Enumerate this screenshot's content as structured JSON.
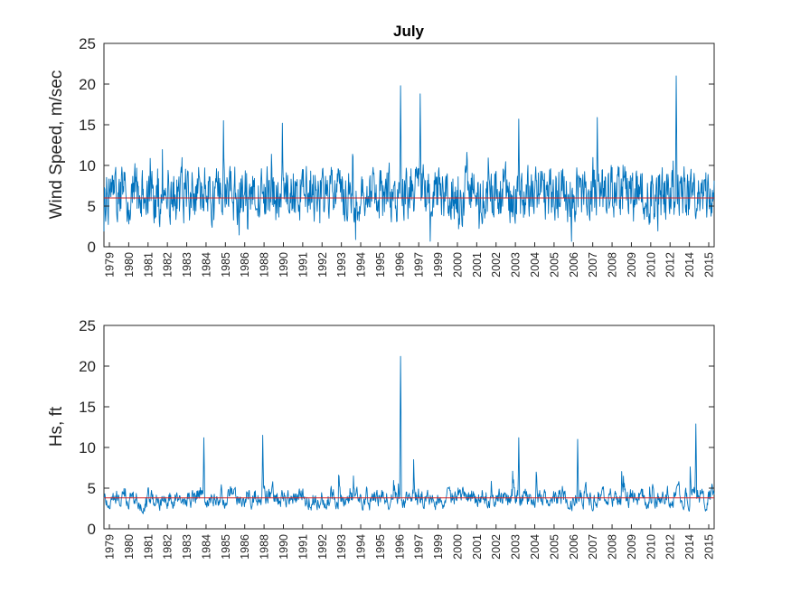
{
  "chart_data": [
    {
      "type": "line",
      "title": "July",
      "xlabel": "",
      "ylabel": "Wind Speed, m/sec",
      "ylim": [
        0,
        25
      ],
      "yticks": [
        0,
        5,
        10,
        15,
        20,
        25
      ],
      "xtick_labels": [
        "1979",
        "1980",
        "1981",
        "1982",
        "1983",
        "1984",
        "1985",
        "1986",
        "1988",
        "1990",
        "1991",
        "1992",
        "1993",
        "1994",
        "1995",
        "1996",
        "1997",
        "1999",
        "2000",
        "2001",
        "2002",
        "2003",
        "2004",
        "2005",
        "2006",
        "2007",
        "2008",
        "2009",
        "2010",
        "2012",
        "2014",
        "2015"
      ],
      "grid": false,
      "series_color": "#0072BD",
      "mean_value": 6.0,
      "mean_color": "#D62728",
      "approx_series_note_values": {
        "typical_range": [
          2,
          11
        ],
        "peaks": [
          {
            "year": "1985",
            "value": 15.5
          },
          {
            "year": "1990",
            "value": 15.2
          },
          {
            "year": "1996",
            "value": 19.8
          },
          {
            "year": "1997",
            "value": 18.8
          },
          {
            "year": "2003",
            "value": 15.7
          },
          {
            "year": "2007",
            "value": 15.9
          },
          {
            "year": "2012",
            "value": 21.0
          }
        ]
      }
    },
    {
      "type": "line",
      "title": "",
      "xlabel": "",
      "ylabel": "Hs, ft",
      "ylim": [
        0,
        25
      ],
      "yticks": [
        0,
        5,
        10,
        15,
        20,
        25
      ],
      "xtick_labels": [
        "1979",
        "1980",
        "1981",
        "1982",
        "1983",
        "1984",
        "1985",
        "1986",
        "1988",
        "1990",
        "1991",
        "1992",
        "1993",
        "1994",
        "1995",
        "1996",
        "1997",
        "1999",
        "2000",
        "2001",
        "2002",
        "2003",
        "2004",
        "2005",
        "2006",
        "2007",
        "2008",
        "2009",
        "2010",
        "2012",
        "2014",
        "2015"
      ],
      "grid": false,
      "series_color": "#0072BD",
      "mean_value": 3.8,
      "mean_color": "#D62728",
      "approx_series_note_values": {
        "typical_range": [
          1.5,
          7
        ],
        "peaks": [
          {
            "year": "1984",
            "value": 11.2
          },
          {
            "year": "1988",
            "value": 11.5
          },
          {
            "year": "1996",
            "value": 21.2
          },
          {
            "year": "2003",
            "value": 11.2
          },
          {
            "year": "2006",
            "value": 11.0
          },
          {
            "year": "2014",
            "value": 12.9
          }
        ]
      }
    }
  ]
}
